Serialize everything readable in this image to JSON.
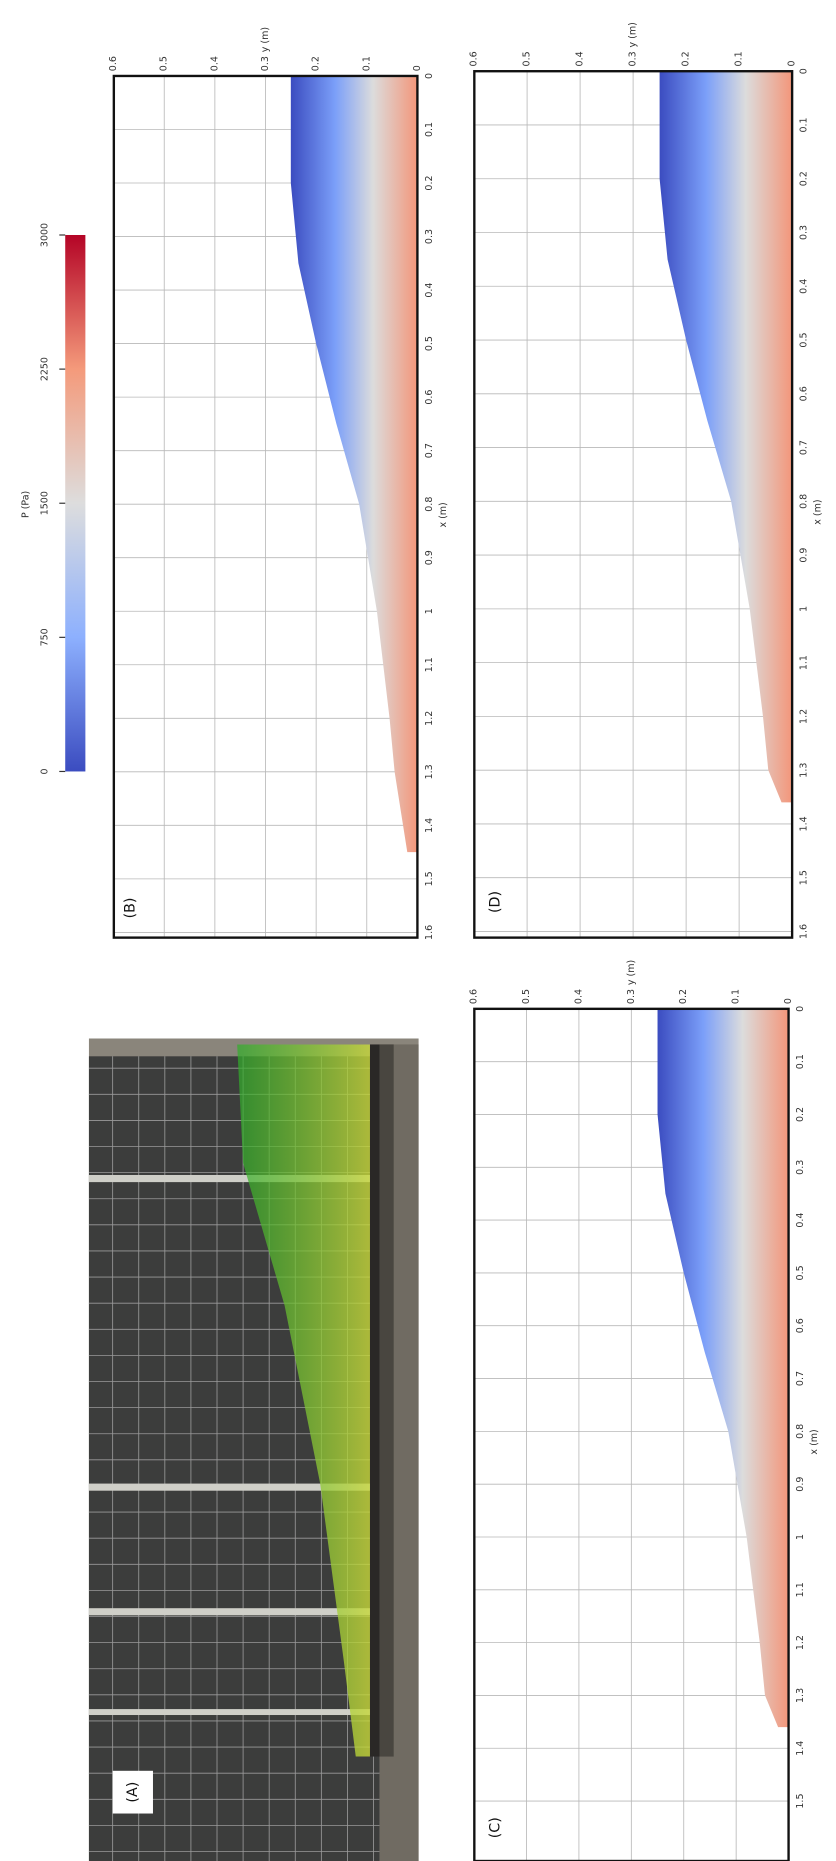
{
  "colorbar": {
    "title": "P (Pa)",
    "ticks": [
      "0",
      "750",
      "1500",
      "2250",
      "3000"
    ]
  },
  "panels": [
    {
      "label": "(A)"
    },
    {
      "label": "(B)",
      "x_axis_label": "x (m)",
      "y_axis_label": "y (m)",
      "x_ticks": [
        "0",
        "0.1",
        "0.2",
        "0.3",
        "0.4",
        "0.5",
        "0.6",
        "0.7",
        "0.8",
        "0.9",
        "1",
        "1.1",
        "1.2",
        "1.3",
        "1.4",
        "1.5",
        "1.6"
      ],
      "y_ticks": [
        "0",
        "0.1",
        "0.2",
        "0.3",
        "0.4",
        "0.5",
        "0.6"
      ]
    },
    {
      "label": "(C)",
      "x_axis_label": "x (m)",
      "y_axis_label": "y (m)",
      "x_ticks": [
        "0",
        "0.1",
        "0.2",
        "0.3",
        "0.4",
        "0.5",
        "0.6",
        "0.7",
        "0.8",
        "0.9",
        "1",
        "1.1",
        "1.2",
        "1.3",
        "1.4",
        "1.5"
      ],
      "y_ticks": [
        "0",
        "0.1",
        "0.2",
        "0.3",
        "0.4",
        "0.5",
        "0.6"
      ]
    },
    {
      "label": "(D)",
      "x_axis_label": "x (m)",
      "y_axis_label": "y (m)",
      "x_ticks": [
        "0",
        "0.1",
        "0.2",
        "0.3",
        "0.4",
        "0.5",
        "0.6",
        "0.7",
        "0.8",
        "0.9",
        "1",
        "1.1",
        "1.2",
        "1.3",
        "1.4",
        "1.5",
        "1.6"
      ],
      "y_ticks": [
        "0",
        "0.1",
        "0.2",
        "0.3",
        "0.4",
        "0.5",
        "0.6"
      ]
    }
  ]
}
